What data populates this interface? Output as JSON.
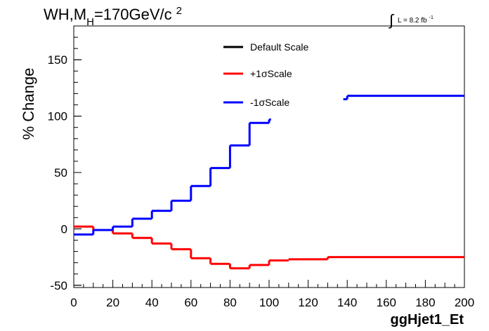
{
  "chart_data": {
    "type": "line",
    "title": "WH,M",
    "title_subscript": "H",
    "title_rest": "=170GeV/c",
    "title_superscript": "2",
    "lumi_label": "L = 8.2 fb",
    "lumi_superscript": "-1",
    "xlabel": "ggHjet1_Et",
    "ylabel": "% Change",
    "xlim": [
      0,
      200
    ],
    "ylim": [
      -52,
      180
    ],
    "xticks": [
      "0",
      "20",
      "40",
      "60",
      "80",
      "100",
      "120",
      "140",
      "160",
      "180",
      "200"
    ],
    "yticks": [
      "-50",
      "0",
      "50",
      "100",
      "150"
    ],
    "legend_position": "top-center",
    "series": [
      {
        "name": "Default Scale",
        "color": "#000000",
        "bins": []
      },
      {
        "name": "+1σScale",
        "color": "#ff0000",
        "bins": [
          {
            "x0": 0,
            "x1": 10,
            "y": 2
          },
          {
            "x0": 10,
            "x1": 20,
            "y": -1
          },
          {
            "x0": 20,
            "x1": 30,
            "y": -4
          },
          {
            "x0": 30,
            "x1": 40,
            "y": -8
          },
          {
            "x0": 40,
            "x1": 50,
            "y": -13
          },
          {
            "x0": 50,
            "x1": 60,
            "y": -18
          },
          {
            "x0": 60,
            "x1": 70,
            "y": -26
          },
          {
            "x0": 70,
            "x1": 80,
            "y": -31
          },
          {
            "x0": 80,
            "x1": 90,
            "y": -35
          },
          {
            "x0": 90,
            "x1": 100,
            "y": -32
          },
          {
            "x0": 100,
            "x1": 110,
            "y": -28
          },
          {
            "x0": 110,
            "x1": 130,
            "y": -27
          },
          {
            "x0": 130,
            "x1": 200,
            "y": -25
          }
        ]
      },
      {
        "name": "-1σScale",
        "color": "#0000ff",
        "bins": [
          {
            "x0": 0,
            "x1": 10,
            "y": -5
          },
          {
            "x0": 10,
            "x1": 20,
            "y": -1
          },
          {
            "x0": 20,
            "x1": 30,
            "y": 2
          },
          {
            "x0": 30,
            "x1": 40,
            "y": 9
          },
          {
            "x0": 40,
            "x1": 50,
            "y": 16
          },
          {
            "x0": 50,
            "x1": 60,
            "y": 25
          },
          {
            "x0": 60,
            "x1": 70,
            "y": 38
          },
          {
            "x0": 70,
            "x1": 80,
            "y": 54
          },
          {
            "x0": 80,
            "x1": 90,
            "y": 74
          },
          {
            "x0": 90,
            "x1": 100,
            "y": 94
          },
          {
            "x0": 100,
            "x1": 101,
            "y": 97
          },
          {
            "x0": 138,
            "x1": 140,
            "y": 115
          },
          {
            "x0": 140,
            "x1": 200,
            "y": 118
          }
        ]
      }
    ]
  }
}
